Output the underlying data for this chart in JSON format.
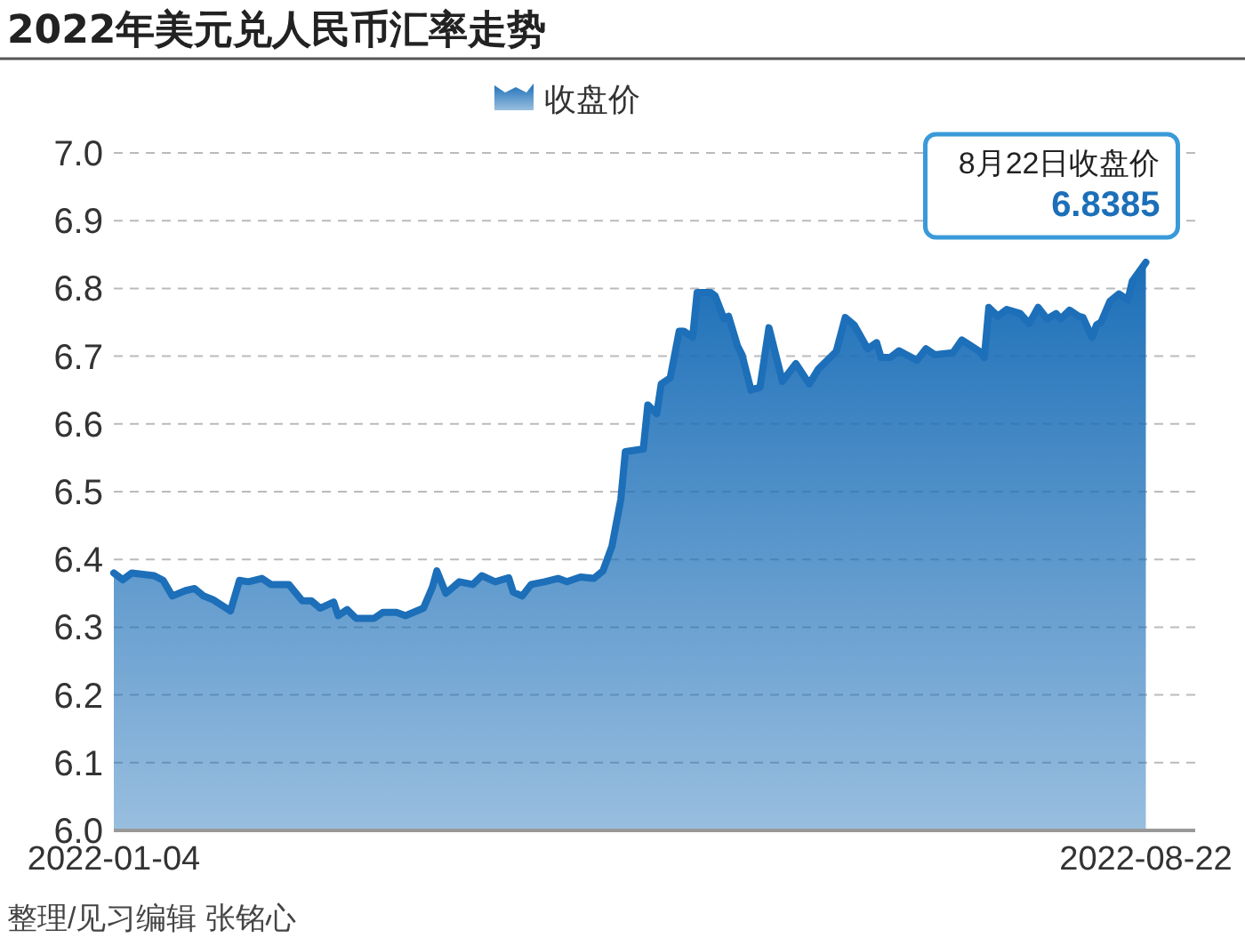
{
  "chart_data": {
    "type": "area",
    "title": "2022年美元兑人民币汇率走势",
    "x": [
      "2022-01-04",
      "2022-01-06",
      "2022-01-08",
      "2022-01-13",
      "2022-01-15",
      "2022-01-17",
      "2022-01-20",
      "2022-01-22",
      "2022-01-24",
      "2022-01-26",
      "2022-01-30",
      "2022-02-01",
      "2022-02-03",
      "2022-02-06",
      "2022-02-08",
      "2022-02-12",
      "2022-02-15",
      "2022-02-17",
      "2022-02-19",
      "2022-02-22",
      "2022-02-23",
      "2022-02-25",
      "2022-02-27",
      "2022-03-03",
      "2022-03-05",
      "2022-03-08",
      "2022-03-10",
      "2022-03-14",
      "2022-03-16",
      "2022-03-17",
      "2022-03-19",
      "2022-03-22",
      "2022-03-25",
      "2022-03-27",
      "2022-03-30",
      "2022-04-02",
      "2022-04-03",
      "2022-04-05",
      "2022-04-07",
      "2022-04-10",
      "2022-04-13",
      "2022-04-15",
      "2022-04-18",
      "2022-04-21",
      "2022-04-23",
      "2022-04-25",
      "2022-04-27",
      "2022-04-28",
      "2022-05-02",
      "2022-05-03",
      "2022-05-05",
      "2022-05-06",
      "2022-05-08",
      "2022-05-10",
      "2022-05-11",
      "2022-05-13",
      "2022-05-14",
      "2022-05-17",
      "2022-05-18",
      "2022-05-20",
      "2022-05-21",
      "2022-05-23",
      "2022-05-24",
      "2022-05-26",
      "2022-05-28",
      "2022-05-30",
      "2022-06-02",
      "2022-06-05",
      "2022-06-08",
      "2022-06-10",
      "2022-06-14",
      "2022-06-16",
      "2022-06-18",
      "2022-06-21",
      "2022-06-23",
      "2022-06-24",
      "2022-06-26",
      "2022-06-28",
      "2022-07-02",
      "2022-07-04",
      "2022-07-06",
      "2022-07-10",
      "2022-07-12",
      "2022-07-16",
      "2022-07-17",
      "2022-07-18",
      "2022-07-20",
      "2022-07-22",
      "2022-07-25",
      "2022-07-27",
      "2022-07-29",
      "2022-07-31",
      "2022-08-02",
      "2022-08-03",
      "2022-08-05",
      "2022-08-07",
      "2022-08-08",
      "2022-08-10",
      "2022-08-11",
      "2022-08-12",
      "2022-08-14",
      "2022-08-16",
      "2022-08-18",
      "2022-08-19",
      "2022-08-22"
    ],
    "series": [
      {
        "name": "收盘价",
        "color": "#1c6fb8",
        "values": [
          6.38,
          6.37,
          6.38,
          6.376,
          6.369,
          6.346,
          6.354,
          6.357,
          6.346,
          6.341,
          6.324,
          6.369,
          6.367,
          6.372,
          6.363,
          6.363,
          6.339,
          6.339,
          6.328,
          6.337,
          6.317,
          6.326,
          6.313,
          6.313,
          6.322,
          6.322,
          6.317,
          6.328,
          6.359,
          6.383,
          6.35,
          6.367,
          6.363,
          6.376,
          6.367,
          6.373,
          6.352,
          6.346,
          6.363,
          6.367,
          6.372,
          6.367,
          6.374,
          6.372,
          6.383,
          6.419,
          6.489,
          6.559,
          6.563,
          6.628,
          6.615,
          6.659,
          6.668,
          6.737,
          6.737,
          6.728,
          6.794,
          6.794,
          6.789,
          6.755,
          6.759,
          6.715,
          6.702,
          6.65,
          6.654,
          6.742,
          6.663,
          6.689,
          6.659,
          6.681,
          6.707,
          6.757,
          6.746,
          6.711,
          6.72,
          6.698,
          6.698,
          6.708,
          6.694,
          6.711,
          6.702,
          6.705,
          6.724,
          6.707,
          6.698,
          6.772,
          6.759,
          6.769,
          6.763,
          6.748,
          6.772,
          6.755,
          6.763,
          6.755,
          6.768,
          6.759,
          6.757,
          6.728,
          6.746,
          6.75,
          6.781,
          6.792,
          6.783,
          6.811,
          6.8385
        ]
      }
    ],
    "xlim": [
      "2022-01-04",
      "2022-09-02"
    ],
    "xticks": [
      {
        "value": "2022-01-04",
        "label": "2022-01-04"
      },
      {
        "value": "2022-08-22",
        "label": "2022-08-22"
      }
    ],
    "ylim": [
      6.0,
      7.0
    ],
    "yticks": [
      {
        "value": 6.0,
        "label": "6.0"
      },
      {
        "value": 6.1,
        "label": "6.1"
      },
      {
        "value": 6.2,
        "label": "6.2"
      },
      {
        "value": 6.3,
        "label": "6.3"
      },
      {
        "value": 6.4,
        "label": "6.4"
      },
      {
        "value": 6.5,
        "label": "6.5"
      },
      {
        "value": 6.6,
        "label": "6.6"
      },
      {
        "value": 6.7,
        "label": "6.7"
      },
      {
        "value": 6.8,
        "label": "6.8"
      },
      {
        "value": 6.9,
        "label": "6.9"
      },
      {
        "value": 7.0,
        "label": "7.0"
      }
    ],
    "grid": "y",
    "legend": "top",
    "marker": "none",
    "line_style": "solid",
    "annotations": [
      {
        "text": "8月22日收盘价\n6.8385",
        "x": "2022-08-22",
        "y": 6.8385
      },
      "整理/见习编辑 张铭心"
    ]
  }
}
